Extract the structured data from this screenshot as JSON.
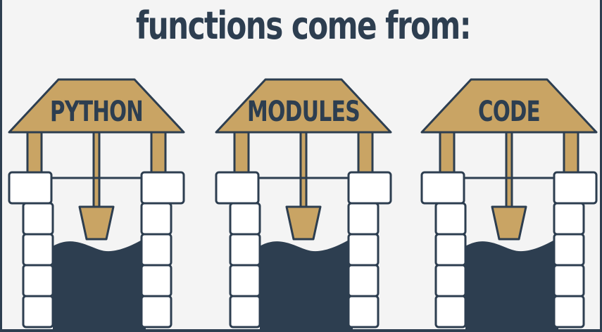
{
  "title": "functions come from:",
  "colors": {
    "background": "#f4f4f4",
    "roof": "#c9a464",
    "outline": "#2d3e50",
    "water": "#2d3e50",
    "bricks": "#ffffff"
  },
  "wells": [
    {
      "label": "PYTHON"
    },
    {
      "label": "MODULES"
    },
    {
      "label": "CODE"
    }
  ]
}
